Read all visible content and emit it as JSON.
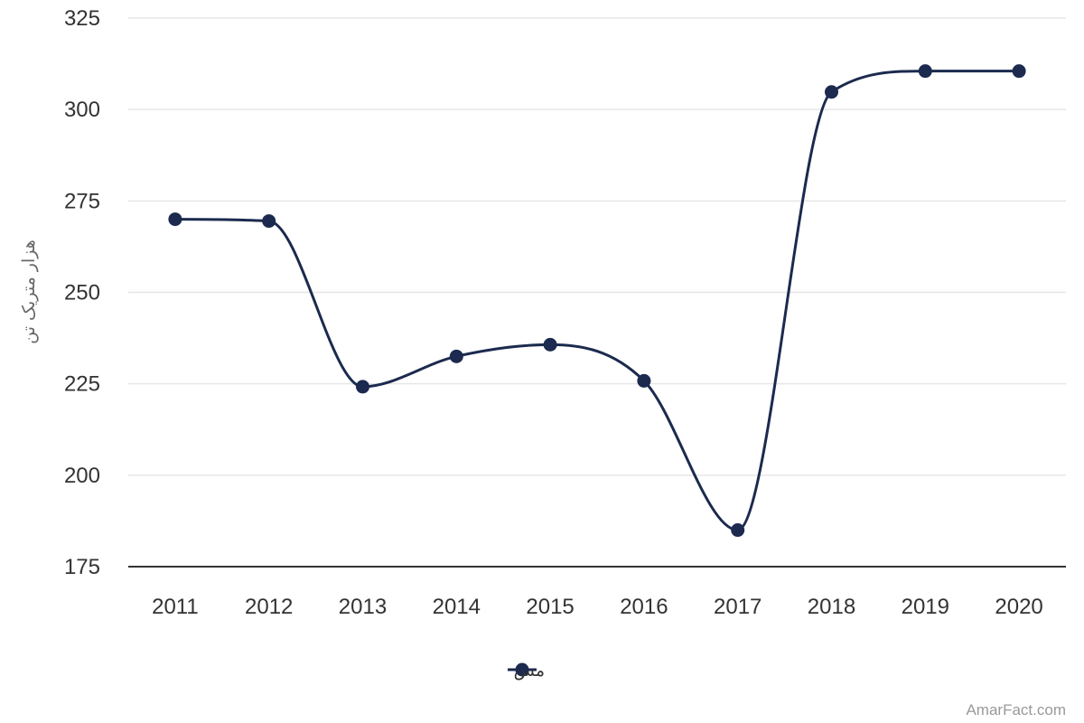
{
  "chart_data": {
    "type": "line",
    "curve": "smooth",
    "categories": [
      "2011",
      "2012",
      "2013",
      "2014",
      "2015",
      "2016",
      "2017",
      "2018",
      "2019",
      "2020"
    ],
    "series": [
      {
        "name": "مس",
        "values": [
          270,
          269.5,
          224.2,
          232.5,
          235.7,
          225.8,
          185,
          304.8,
          310.5,
          310.5
        ]
      }
    ],
    "ylabel": "هزار متریک تن",
    "xlabel": "",
    "ylim": [
      175,
      325
    ],
    "yticks": [
      175,
      200,
      225,
      250,
      275,
      300,
      325
    ],
    "grid": true,
    "legend_position": "bottom-center",
    "colors": {
      "line": "#1b2a4e",
      "grid": "#e6e6e6",
      "axis": "#333333"
    }
  },
  "credit": "AmarFact.com"
}
